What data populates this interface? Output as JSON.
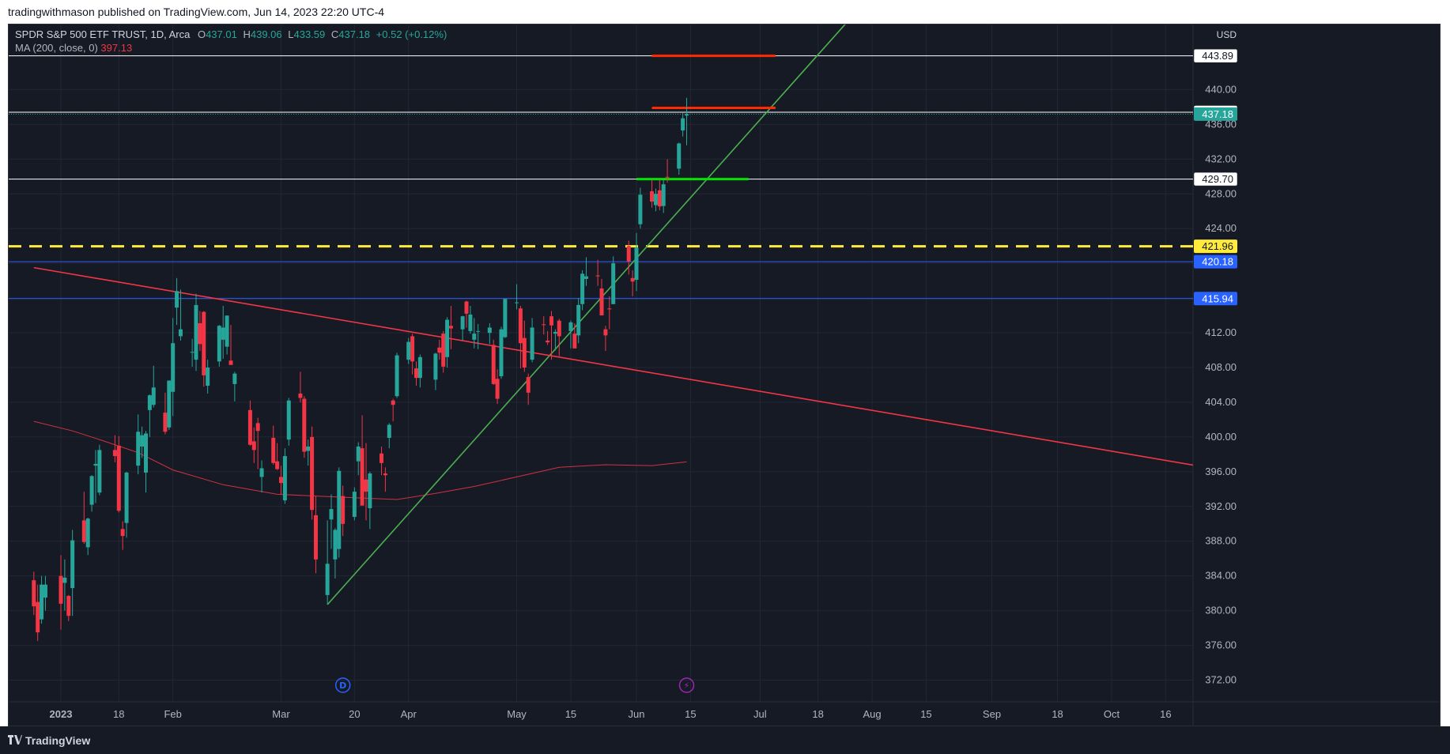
{
  "header": {
    "published": "tradingwithmason published on TradingView.com, Jun 14, 2023 22:20 UTC-4"
  },
  "legend": {
    "symbol": "SPDR S&P 500 ETF TRUST, 1D, Arca",
    "o_label": "O",
    "o": "437.01",
    "h_label": "H",
    "h": "439.06",
    "l_label": "L",
    "l": "433.59",
    "c_label": "C",
    "c": "437.18",
    "change": "+0.52 (+0.12%)",
    "ma_label": "MA (200, close, 0)",
    "ma_value": "397.13"
  },
  "footer": {
    "brand": "TradingView"
  },
  "colors": {
    "bg": "#161a25",
    "grid": "#232733",
    "up": "#26a69a",
    "down": "#f23645",
    "axis_text": "#b2b5be",
    "ma": "#f23645",
    "support_trend": "#4caf50",
    "resistance_trend": "#f23645",
    "yellow": "#ffeb3b",
    "blue": "#2962ff",
    "green_zone": "#00e600",
    "red_zone": "#ff2a00"
  },
  "chart_data": {
    "type": "candlestick",
    "currency_label": "USD",
    "ylim": [
      369.5,
      447.5
    ],
    "y_ticks": [
      372,
      376,
      380,
      384,
      388,
      392,
      396,
      400,
      404,
      408,
      412,
      416,
      420,
      424,
      428,
      432,
      436,
      440
    ],
    "x_ticks": [
      {
        "date": "2023-01-03",
        "label": "2023",
        "bold": true
      },
      {
        "date": "2023-01-18",
        "label": "18"
      },
      {
        "date": "2023-02-01",
        "label": "Feb"
      },
      {
        "date": "2023-03-01",
        "label": "Mar"
      },
      {
        "date": "2023-03-20",
        "label": "20"
      },
      {
        "date": "2023-04-03",
        "label": "Apr"
      },
      {
        "date": "2023-05-01",
        "label": "May"
      },
      {
        "date": "2023-05-15",
        "label": "15"
      },
      {
        "date": "2023-06-01",
        "label": "Jun"
      },
      {
        "date": "2023-06-15",
        "label": "15"
      },
      {
        "date": "2023-07-03",
        "label": "Jul"
      },
      {
        "date": "2023-07-18",
        "label": "18"
      },
      {
        "date": "2023-08-01",
        "label": "Aug"
      },
      {
        "date": "2023-08-15",
        "label": "15"
      },
      {
        "date": "2023-09-01",
        "label": "Sep"
      },
      {
        "date": "2023-09-18",
        "label": "18"
      },
      {
        "date": "2023-10-02",
        "label": "Oct"
      },
      {
        "date": "2023-10-16",
        "label": "16"
      }
    ],
    "candles": [
      {
        "d": "2022-12-27",
        "o": 383.5,
        "h": 384.5,
        "l": 379.5,
        "c": 380.5
      },
      {
        "d": "2022-12-28",
        "o": 381.0,
        "h": 383.0,
        "l": 376.5,
        "c": 377.5
      },
      {
        "d": "2022-12-29",
        "o": 379.0,
        "h": 384.0,
        "l": 378.5,
        "c": 383.0
      },
      {
        "d": "2022-12-30",
        "o": 381.5,
        "h": 384.0,
        "l": 380.0,
        "c": 383.0
      },
      {
        "d": "2023-01-03",
        "o": 384.0,
        "h": 386.4,
        "l": 377.8,
        "c": 380.8
      },
      {
        "d": "2023-01-04",
        "o": 383.2,
        "h": 385.9,
        "l": 380.0,
        "c": 383.8
      },
      {
        "d": "2023-01-05",
        "o": 381.7,
        "h": 381.8,
        "l": 378.8,
        "c": 379.4
      },
      {
        "d": "2023-01-06",
        "o": 382.6,
        "h": 389.3,
        "l": 379.4,
        "c": 388.1
      },
      {
        "d": "2023-01-09",
        "o": 390.4,
        "h": 393.7,
        "l": 387.7,
        "c": 387.9
      },
      {
        "d": "2023-01-10",
        "o": 387.3,
        "h": 390.7,
        "l": 386.4,
        "c": 390.6
      },
      {
        "d": "2023-01-11",
        "o": 392.2,
        "h": 395.6,
        "l": 391.4,
        "c": 395.5
      },
      {
        "d": "2023-01-12",
        "o": 396.7,
        "h": 398.5,
        "l": 392.4,
        "c": 396.9
      },
      {
        "d": "2023-01-13",
        "o": 393.6,
        "h": 399.1,
        "l": 393.3,
        "c": 398.5
      },
      {
        "d": "2023-01-17",
        "o": 398.5,
        "h": 400.2,
        "l": 397.1,
        "c": 397.8
      },
      {
        "d": "2023-01-18",
        "o": 399.0,
        "h": 400.1,
        "l": 391.3,
        "c": 391.5
      },
      {
        "d": "2023-01-19",
        "o": 389.4,
        "h": 390.3,
        "l": 387.0,
        "c": 388.6
      },
      {
        "d": "2023-01-20",
        "o": 390.1,
        "h": 396.0,
        "l": 388.4,
        "c": 395.9
      },
      {
        "d": "2023-01-23",
        "o": 396.7,
        "h": 402.6,
        "l": 395.7,
        "c": 400.6
      },
      {
        "d": "2023-01-24",
        "o": 398.9,
        "h": 401.2,
        "l": 397.6,
        "c": 400.2
      },
      {
        "d": "2023-01-25",
        "o": 395.9,
        "h": 400.7,
        "l": 393.6,
        "c": 400.4
      },
      {
        "d": "2023-01-26",
        "o": 403.1,
        "h": 404.9,
        "l": 400.0,
        "c": 404.8
      },
      {
        "d": "2023-01-27",
        "o": 403.7,
        "h": 408.2,
        "l": 403.4,
        "c": 405.7
      },
      {
        "d": "2023-01-30",
        "o": 402.8,
        "h": 405.1,
        "l": 400.3,
        "c": 400.6
      },
      {
        "d": "2023-01-31",
        "o": 401.1,
        "h": 406.5,
        "l": 400.8,
        "c": 406.5
      },
      {
        "d": "2023-02-01",
        "o": 405.2,
        "h": 413.7,
        "l": 402.4,
        "c": 410.8
      },
      {
        "d": "2023-02-02",
        "o": 414.9,
        "h": 418.3,
        "l": 412.9,
        "c": 416.8
      },
      {
        "d": "2023-02-03",
        "o": 411.6,
        "h": 416.97,
        "l": 411.1,
        "c": 412.4
      },
      {
        "d": "2023-02-06",
        "o": 409.8,
        "h": 411.3,
        "l": 408.1,
        "c": 409.8
      },
      {
        "d": "2023-02-07",
        "o": 408.9,
        "h": 416.5,
        "l": 407.6,
        "c": 415.2
      },
      {
        "d": "2023-02-08",
        "o": 413.1,
        "h": 414.5,
        "l": 409.9,
        "c": 410.7
      },
      {
        "d": "2023-02-09",
        "o": 414.4,
        "h": 414.5,
        "l": 405.8,
        "c": 407.1
      },
      {
        "d": "2023-02-10",
        "o": 405.9,
        "h": 408.9,
        "l": 405.0,
        "c": 408.0
      },
      {
        "d": "2023-02-13",
        "o": 408.7,
        "h": 412.9,
        "l": 408.1,
        "c": 412.8
      },
      {
        "d": "2023-02-14",
        "o": 411.2,
        "h": 415.1,
        "l": 409.0,
        "c": 412.6
      },
      {
        "d": "2023-02-15",
        "o": 410.4,
        "h": 414.0,
        "l": 409.5,
        "c": 413.98
      },
      {
        "d": "2023-02-16",
        "o": 408.8,
        "h": 412.9,
        "l": 408.3,
        "c": 408.3
      },
      {
        "d": "2023-02-17",
        "o": 406.1,
        "h": 407.5,
        "l": 404.1,
        "c": 407.3
      },
      {
        "d": "2023-02-21",
        "o": 403.1,
        "h": 404.2,
        "l": 399.0,
        "c": 399.1
      },
      {
        "d": "2023-02-22",
        "o": 399.5,
        "h": 401.1,
        "l": 397.0,
        "c": 398.5
      },
      {
        "d": "2023-02-23",
        "o": 401.6,
        "h": 402.2,
        "l": 396.3,
        "c": 400.7
      },
      {
        "d": "2023-02-24",
        "o": 395.4,
        "h": 397.3,
        "l": 393.6,
        "c": 396.4
      },
      {
        "d": "2023-02-27",
        "o": 399.9,
        "h": 401.3,
        "l": 396.8,
        "c": 397.0
      },
      {
        "d": "2023-02-28",
        "o": 397.2,
        "h": 399.3,
        "l": 396.2,
        "c": 396.3
      },
      {
        "d": "2023-03-01",
        "o": 395.4,
        "h": 396.7,
        "l": 393.4,
        "c": 394.7
      },
      {
        "d": "2023-03-02",
        "o": 392.7,
        "h": 398.7,
        "l": 392.3,
        "c": 397.8
      },
      {
        "d": "2023-03-03",
        "o": 399.7,
        "h": 404.5,
        "l": 399.0,
        "c": 404.2
      },
      {
        "d": "2023-03-06",
        "o": 405.0,
        "h": 407.5,
        "l": 404.0,
        "c": 404.5
      },
      {
        "d": "2023-03-07",
        "o": 404.4,
        "h": 404.7,
        "l": 397.6,
        "c": 398.3
      },
      {
        "d": "2023-03-08",
        "o": 398.4,
        "h": 399.7,
        "l": 396.7,
        "c": 398.9
      },
      {
        "d": "2023-03-09",
        "o": 400.0,
        "h": 401.2,
        "l": 390.5,
        "c": 391.6
      },
      {
        "d": "2023-03-10",
        "o": 390.99,
        "h": 393.2,
        "l": 384.3,
        "c": 385.9
      },
      {
        "d": "2023-03-13",
        "o": 381.8,
        "h": 390.4,
        "l": 380.7,
        "c": 385.4
      },
      {
        "d": "2023-03-14",
        "o": 390.5,
        "h": 393.4,
        "l": 387.1,
        "c": 391.7
      },
      {
        "d": "2023-03-15",
        "o": 385.9,
        "h": 389.5,
        "l": 383.7,
        "c": 389.3
      },
      {
        "d": "2023-03-16",
        "o": 387.1,
        "h": 396.5,
        "l": 386.1,
        "c": 396.1
      },
      {
        "d": "2023-03-17",
        "o": 393.2,
        "h": 394.4,
        "l": 388.6,
        "c": 389.99
      },
      {
        "d": "2023-03-20",
        "o": 390.8,
        "h": 394.2,
        "l": 390.4,
        "c": 393.7
      },
      {
        "d": "2023-03-21",
        "o": 397.2,
        "h": 399.4,
        "l": 395.6,
        "c": 398.9
      },
      {
        "d": "2023-03-22",
        "o": 398.7,
        "h": 402.5,
        "l": 392.1,
        "c": 392.1
      },
      {
        "d": "2023-03-23",
        "o": 395.1,
        "h": 399.3,
        "l": 390.4,
        "c": 393.7
      },
      {
        "d": "2023-03-24",
        "o": 391.8,
        "h": 396.0,
        "l": 389.4,
        "c": 395.8
      },
      {
        "d": "2023-03-27",
        "o": 398.1,
        "h": 398.9,
        "l": 395.6,
        "c": 397.0
      },
      {
        "d": "2023-03-28",
        "o": 395.8,
        "h": 396.5,
        "l": 393.7,
        "c": 395.6
      },
      {
        "d": "2023-03-29",
        "o": 399.9,
        "h": 401.6,
        "l": 398.7,
        "c": 401.4
      },
      {
        "d": "2023-03-30",
        "o": 404.2,
        "h": 404.4,
        "l": 401.8,
        "c": 403.7
      },
      {
        "d": "2023-03-31",
        "o": 404.7,
        "h": 409.7,
        "l": 404.5,
        "c": 409.4
      },
      {
        "d": "2023-04-03",
        "o": 408.9,
        "h": 411.4,
        "l": 408.4,
        "c": 410.95
      },
      {
        "d": "2023-04-04",
        "o": 411.6,
        "h": 411.9,
        "l": 407.2,
        "c": 408.7
      },
      {
        "d": "2023-04-05",
        "o": 407.9,
        "h": 408.7,
        "l": 405.9,
        "c": 406.8
      },
      {
        "d": "2023-04-06",
        "o": 406.8,
        "h": 409.5,
        "l": 405.7,
        "c": 409.2
      },
      {
        "d": "2023-04-10",
        "o": 406.6,
        "h": 409.7,
        "l": 405.4,
        "c": 409.6
      },
      {
        "d": "2023-04-11",
        "o": 410.3,
        "h": 411.2,
        "l": 408.9,
        "c": 409.7
      },
      {
        "d": "2023-04-12",
        "o": 411.9,
        "h": 412.2,
        "l": 407.4,
        "c": 408.1
      },
      {
        "d": "2023-04-13",
        "o": 409.2,
        "h": 413.8,
        "l": 407.99,
        "c": 413.5
      },
      {
        "d": "2023-04-14",
        "o": 412.8,
        "h": 415.1,
        "l": 410.1,
        "c": 412.5
      },
      {
        "d": "2023-04-17",
        "o": 412.4,
        "h": 413.96,
        "l": 411.1,
        "c": 413.9
      },
      {
        "d": "2023-04-18",
        "o": 415.6,
        "h": 415.7,
        "l": 412.6,
        "c": 414.2
      },
      {
        "d": "2023-04-19",
        "o": 412.2,
        "h": 415.1,
        "l": 411.9,
        "c": 414.1
      },
      {
        "d": "2023-04-20",
        "o": 411.2,
        "h": 413.7,
        "l": 410.2,
        "c": 411.9
      },
      {
        "d": "2023-04-21",
        "o": 412.2,
        "h": 413.0,
        "l": 410.1,
        "c": 412.2
      },
      {
        "d": "2023-04-24",
        "o": 411.99,
        "h": 413.1,
        "l": 410.7,
        "c": 412.6
      },
      {
        "d": "2023-04-25",
        "o": 410.6,
        "h": 411.2,
        "l": 406.0,
        "c": 406.1
      },
      {
        "d": "2023-04-26",
        "o": 406.7,
        "h": 407.8,
        "l": 403.8,
        "c": 404.4
      },
      {
        "d": "2023-04-27",
        "o": 407.0,
        "h": 412.7,
        "l": 406.7,
        "c": 412.4
      },
      {
        "d": "2023-04-28",
        "o": 411.5,
        "h": 415.9,
        "l": 411.4,
        "c": 415.9
      },
      {
        "d": "2023-05-01",
        "o": 415.5,
        "h": 417.6,
        "l": 414.7,
        "c": 415.5
      },
      {
        "d": "2023-05-02",
        "o": 414.8,
        "h": 415.1,
        "l": 407.9,
        "c": 410.8
      },
      {
        "d": "2023-05-03",
        "o": 411.4,
        "h": 413.4,
        "l": 407.5,
        "c": 408.0
      },
      {
        "d": "2023-05-04",
        "o": 406.9,
        "h": 407.3,
        "l": 403.7,
        "c": 405.1
      },
      {
        "d": "2023-05-05",
        "o": 408.9,
        "h": 413.7,
        "l": 408.6,
        "c": 412.6
      },
      {
        "d": "2023-05-08",
        "o": 412.97,
        "h": 413.9,
        "l": 411.8,
        "c": 412.9
      },
      {
        "d": "2023-05-09",
        "o": 411.1,
        "h": 412.2,
        "l": 410.6,
        "c": 410.9
      },
      {
        "d": "2023-05-10",
        "o": 413.9,
        "h": 414.5,
        "l": 408.9,
        "c": 412.85
      },
      {
        "d": "2023-05-11",
        "o": 411.9,
        "h": 412.4,
        "l": 409.97,
        "c": 412.1
      },
      {
        "d": "2023-05-12",
        "o": 413.4,
        "h": 413.6,
        "l": 409.3,
        "c": 411.6
      },
      {
        "d": "2023-05-15",
        "o": 412.2,
        "h": 413.4,
        "l": 410.2,
        "c": 413.2
      },
      {
        "d": "2023-05-16",
        "o": 411.9,
        "h": 413.1,
        "l": 410.2,
        "c": 410.2
      },
      {
        "d": "2023-05-17",
        "o": 411.7,
        "h": 416.0,
        "l": 410.8,
        "c": 415.2
      },
      {
        "d": "2023-05-18",
        "o": 415.3,
        "h": 419.2,
        "l": 414.6,
        "c": 418.8
      },
      {
        "d": "2023-05-19",
        "o": 418.2,
        "h": 420.7,
        "l": 417.4,
        "c": 418.5
      },
      {
        "d": "2023-05-22",
        "o": 418.6,
        "h": 420.4,
        "l": 417.4,
        "c": 418.5
      },
      {
        "d": "2023-05-23",
        "o": 417.1,
        "h": 418.2,
        "l": 414.0,
        "c": 414.0
      },
      {
        "d": "2023-05-24",
        "o": 412.4,
        "h": 412.8,
        "l": 409.9,
        "c": 411.7
      },
      {
        "d": "2023-05-25",
        "o": 414.8,
        "h": 416.2,
        "l": 412.4,
        "c": 414.7
      },
      {
        "d": "2023-05-26",
        "o": 415.3,
        "h": 420.8,
        "l": 415.3,
        "c": 420.0
      },
      {
        "d": "2023-05-30",
        "o": 422.0,
        "h": 422.6,
        "l": 418.7,
        "c": 420.2
      },
      {
        "d": "2023-05-31",
        "o": 418.3,
        "h": 419.2,
        "l": 416.2,
        "c": 417.9
      },
      {
        "d": "2023-06-01",
        "o": 418.1,
        "h": 423.5,
        "l": 416.8,
        "c": 421.8
      },
      {
        "d": "2023-06-02",
        "o": 424.5,
        "h": 428.7,
        "l": 424.0,
        "c": 427.9
      },
      {
        "d": "2023-06-05",
        "o": 428.3,
        "h": 429.6,
        "l": 426.4,
        "c": 427.1
      },
      {
        "d": "2023-06-06",
        "o": 426.7,
        "h": 428.6,
        "l": 425.99,
        "c": 428.0
      },
      {
        "d": "2023-06-07",
        "o": 428.4,
        "h": 429.6,
        "l": 426.1,
        "c": 426.55
      },
      {
        "d": "2023-06-08",
        "o": 426.6,
        "h": 429.6,
        "l": 425.8,
        "c": 429.1
      },
      {
        "d": "2023-06-09",
        "o": 429.96,
        "h": 431.99,
        "l": 429.3,
        "c": 429.9
      },
      {
        "d": "2023-06-12",
        "o": 430.9,
        "h": 433.9,
        "l": 430.2,
        "c": 433.8
      },
      {
        "d": "2023-06-13",
        "o": 435.3,
        "h": 437.3,
        "l": 434.6,
        "c": 436.7
      },
      {
        "d": "2023-06-14",
        "o": 437.01,
        "h": 439.06,
        "l": 433.59,
        "c": 437.18
      }
    ],
    "ma200": {
      "label": "MA (200, close, 0)",
      "points": [
        {
          "d": "2022-12-27",
          "v": 401.8
        },
        {
          "d": "2023-01-06",
          "v": 400.7
        },
        {
          "d": "2023-01-13",
          "v": 399.7
        },
        {
          "d": "2023-01-23",
          "v": 398.2
        },
        {
          "d": "2023-02-01",
          "v": 396.2
        },
        {
          "d": "2023-02-14",
          "v": 394.5
        },
        {
          "d": "2023-02-28",
          "v": 393.4
        },
        {
          "d": "2023-03-10",
          "v": 393.2
        },
        {
          "d": "2023-03-20",
          "v": 393.0
        },
        {
          "d": "2023-03-31",
          "v": 392.8
        },
        {
          "d": "2023-04-10",
          "v": 393.5
        },
        {
          "d": "2023-04-20",
          "v": 394.3
        },
        {
          "d": "2023-05-01",
          "v": 395.4
        },
        {
          "d": "2023-05-12",
          "v": 396.5
        },
        {
          "d": "2023-05-24",
          "v": 396.8
        },
        {
          "d": "2023-06-05",
          "v": 396.7
        },
        {
          "d": "2023-06-14",
          "v": 397.13
        }
      ]
    },
    "horizontal_levels": [
      {
        "value": 443.89,
        "label": "443.89",
        "style": "white-line"
      },
      {
        "value": 437.4,
        "label": "437.40",
        "style": "white-line"
      },
      {
        "value": 437.18,
        "label": "437.18",
        "style": "last-price"
      },
      {
        "value": 429.7,
        "label": "429.70",
        "style": "white-line"
      },
      {
        "value": 421.96,
        "label": "421.96",
        "style": "yellow-dashed"
      },
      {
        "value": 420.18,
        "label": "420.18",
        "style": "blue-line"
      },
      {
        "value": 415.94,
        "label": "415.94",
        "style": "blue-line"
      }
    ],
    "trend_lines": [
      {
        "name": "support",
        "from": {
          "d": "2023-03-13",
          "v": 380.7
        },
        "to": {
          "d": "2023-08-01",
          "v": 451.0
        }
      },
      {
        "name": "resistance",
        "from": {
          "d": "2022-12-27",
          "v": 419.5
        },
        "to": {
          "d": "2023-10-24",
          "v": 396.7
        }
      }
    ],
    "zones": [
      {
        "color": "red",
        "value": 443.89,
        "from": "2023-06-05",
        "to": "2023-07-07"
      },
      {
        "color": "red",
        "value": 437.9,
        "from": "2023-06-05",
        "to": "2023-07-07"
      },
      {
        "color": "green",
        "value": 429.7,
        "from": "2023-06-01",
        "to": "2023-06-30"
      }
    ],
    "events": [
      {
        "d": "2023-03-17",
        "label": "D"
      },
      {
        "d": "2023-06-14",
        "label": "⚡"
      }
    ]
  }
}
